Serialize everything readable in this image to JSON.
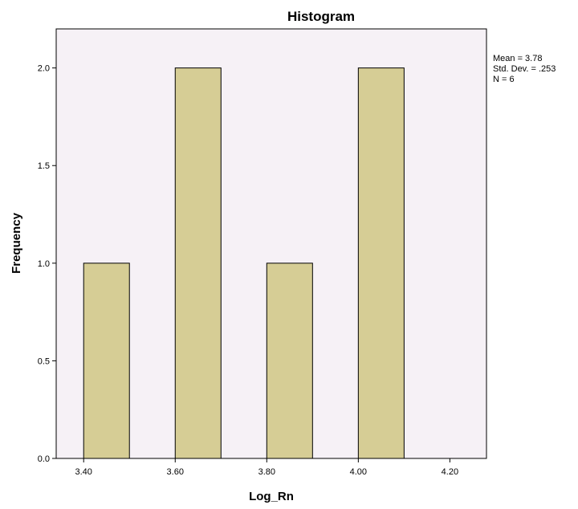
{
  "chart_data": {
    "type": "bar",
    "subtype": "histogram",
    "title": "Histogram",
    "xlabel": "Log_Rn",
    "ylabel": "Frequency",
    "bins": [
      {
        "start": 3.4,
        "end": 3.5,
        "count": 1
      },
      {
        "start": 3.6,
        "end": 3.7,
        "count": 2
      },
      {
        "start": 3.8,
        "end": 3.9,
        "count": 1
      },
      {
        "start": 4.0,
        "end": 4.1,
        "count": 2
      }
    ],
    "xlim": [
      3.34,
      4.28
    ],
    "ylim": [
      0,
      2.2
    ],
    "x_ticks": [
      3.4,
      3.6,
      3.8,
      4.0,
      4.2
    ],
    "x_tick_labels": [
      "3.40",
      "3.60",
      "3.80",
      "4.00",
      "4.20"
    ],
    "y_ticks": [
      0,
      0.5,
      1.0,
      1.5,
      2.0
    ],
    "y_tick_labels": [
      "0.0",
      "0.5",
      "1.0",
      "1.5",
      "2.0"
    ],
    "stats": [
      "Mean = 3.78",
      "Std. Dev. = .253",
      "N = 6"
    ],
    "grid": false,
    "legend": "none",
    "colors": {
      "plot_background": "#f6f1f6",
      "bar_fill": "#d6cd95",
      "bar_stroke": "#000000",
      "frame": "#000000"
    }
  }
}
